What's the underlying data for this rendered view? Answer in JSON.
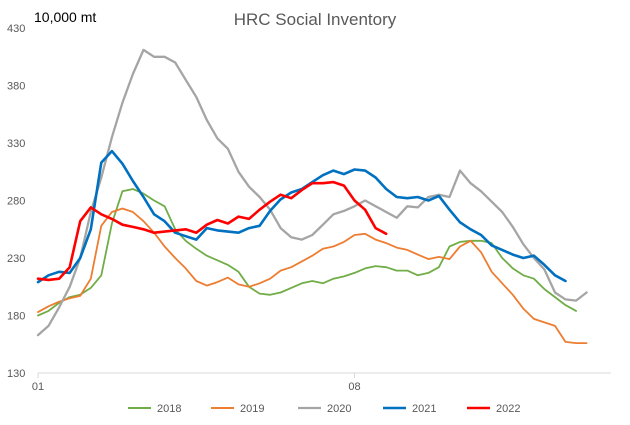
{
  "chart_data": {
    "type": "line",
    "title": "HRC Social Inventory",
    "unit_label": "10,000 mt",
    "ylim": [
      130,
      430
    ],
    "yticks": [
      "130",
      "180",
      "230",
      "280",
      "330",
      "380",
      "430"
    ],
    "xticks": [
      {
        "label": "01",
        "week": 1
      },
      {
        "label": "08",
        "week": 31
      }
    ],
    "x_weeks": 53,
    "grid": false,
    "legend_position": "bottom",
    "series": [
      {
        "name": "2018",
        "color": "#70ad47",
        "width": 1.8,
        "values": [
          180,
          184,
          191,
          196,
          198,
          204,
          215,
          260,
          288,
          290,
          286,
          280,
          275,
          255,
          245,
          238,
          232,
          228,
          224,
          218,
          205,
          199,
          198,
          200,
          204,
          208,
          210,
          208,
          212,
          214,
          217,
          221,
          223,
          222,
          219,
          219,
          215,
          217,
          222,
          240,
          244,
          245,
          245,
          243,
          230,
          221,
          215,
          212,
          203,
          196,
          189,
          184
        ]
      },
      {
        "name": "2019",
        "color": "#ed7d31",
        "width": 1.8,
        "values": [
          183,
          188,
          192,
          195,
          197,
          212,
          258,
          270,
          273,
          270,
          262,
          252,
          240,
          230,
          221,
          210,
          206,
          209,
          213,
          207,
          205,
          208,
          212,
          219,
          222,
          227,
          232,
          238,
          240,
          244,
          250,
          251,
          246,
          243,
          239,
          237,
          233,
          229,
          231,
          229,
          240,
          245,
          235,
          218,
          208,
          198,
          186,
          177,
          174,
          171,
          157,
          156,
          156
        ]
      },
      {
        "name": "2020",
        "color": "#a5a5a5",
        "width": 2.3,
        "values": [
          163,
          171,
          187,
          205,
          230,
          270,
          300,
          335,
          365,
          390,
          411,
          405,
          405,
          400,
          385,
          370,
          350,
          334,
          325,
          305,
          292,
          283,
          272,
          256,
          248,
          246,
          250,
          259,
          268,
          271,
          275,
          280,
          275,
          270,
          265,
          275,
          274,
          283,
          285,
          283,
          306,
          295,
          288,
          279,
          270,
          257,
          242,
          230,
          220,
          200,
          194,
          193,
          200
        ]
      },
      {
        "name": "2021",
        "color": "#0070c0",
        "width": 2.6,
        "values": [
          209,
          215,
          218,
          217,
          230,
          255,
          313,
          323,
          312,
          297,
          283,
          268,
          262,
          252,
          249,
          246,
          256,
          254,
          253,
          252,
          256,
          258,
          271,
          281,
          287,
          290,
          296,
          302,
          306,
          303,
          307,
          306,
          300,
          290,
          283,
          282,
          283,
          280,
          284,
          272,
          261,
          255,
          250,
          241,
          237,
          233,
          230,
          232,
          224,
          215,
          210
        ]
      },
      {
        "name": "2022",
        "color": "#ff0000",
        "width": 2.6,
        "values": [
          212,
          211,
          212,
          222,
          262,
          274,
          268,
          264,
          259,
          257,
          255,
          252,
          253,
          254,
          255,
          252,
          259,
          263,
          260,
          266,
          264,
          272,
          279,
          285,
          282,
          289,
          295,
          295,
          296,
          293,
          280,
          272,
          256,
          251
        ]
      }
    ]
  }
}
